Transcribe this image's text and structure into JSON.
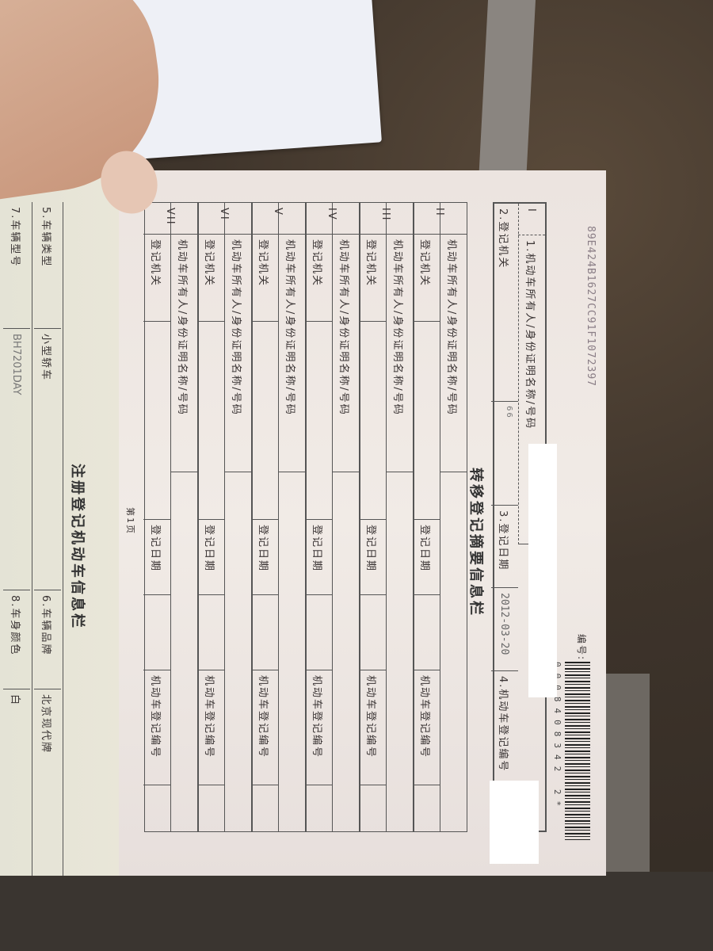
{
  "right_page": {
    "serial_number": "89E424B1627CC91F1072397",
    "number_label": "编号:",
    "barcode_digits": "0008408342 2*",
    "section_title": "转移登记摘要信息栏",
    "box_I": {
      "numeral": "I",
      "owner_label": "1.机动车所有人/身份证明名称/号码",
      "authority_label": "2.登记机关",
      "authority_value": "66",
      "date_label": "3.登记日期",
      "date_value": "2012-03-20",
      "reg_no_label": "4.机动车登记编号"
    },
    "sections": [
      {
        "numeral": "II",
        "owner_label": "机动车所有人/身份证明名称/号码",
        "authority_label": "登记机关",
        "date_label": "登记日期",
        "reg_no_label": "机动车登记编号"
      },
      {
        "numeral": "III",
        "owner_label": "机动车所有人/身份证明名称/号码",
        "authority_label": "登记机关",
        "date_label": "登记日期",
        "reg_no_label": "机动车登记编号"
      },
      {
        "numeral": "IV",
        "owner_label": "机动车所有人/身份证明名称/号码",
        "authority_label": "登记机关",
        "date_label": "登记日期",
        "reg_no_label": "机动车登记编号"
      },
      {
        "numeral": "V",
        "owner_label": "机动车所有人/身份证明名称/号码",
        "authority_label": "登记机关",
        "date_label": "登记日期",
        "reg_no_label": "机动车登记编号"
      },
      {
        "numeral": "VI",
        "owner_label": "机动车所有人/身份证明名称/号码",
        "authority_label": "登记机关",
        "date_label": "登记日期",
        "reg_no_label": "机动车登记编号"
      },
      {
        "numeral": "VII",
        "owner_label": "机动车所有人/身份证明名称/号码",
        "authority_label": "登记机关",
        "date_label": "登记日期",
        "reg_no_label": "机动车登记编号"
      }
    ],
    "page_label": "第1页"
  },
  "left_page": {
    "section_title": "注册登记机动车信息栏",
    "vehicle_type_label": "5.车辆类型",
    "vehicle_type_value": "小型轿车",
    "brand_label": "6.车辆品牌",
    "brand_value": "北京现代牌",
    "model_label": "7.车辆型号",
    "model_value": "BH7201DAY",
    "color_label": "8.车身颜色",
    "color_value": "白"
  }
}
